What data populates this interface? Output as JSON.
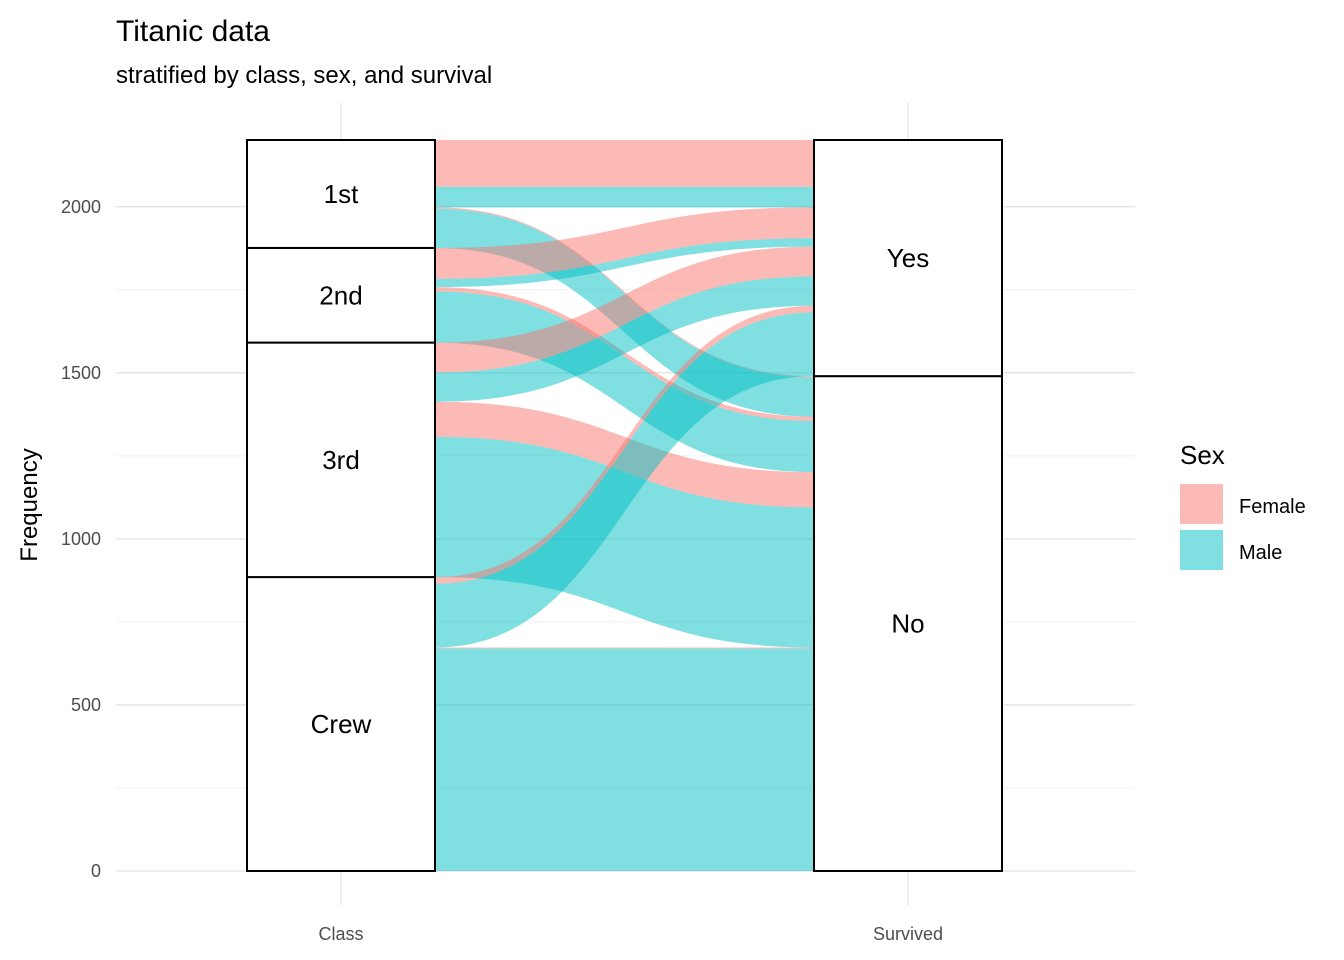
{
  "chart_data": {
    "type": "alluvial",
    "title": "Titanic data",
    "subtitle": "stratified by class, sex, and survival",
    "ylabel": "Frequency",
    "xlabel": "",
    "axes": [
      "Class",
      "Survived"
    ],
    "ylim": [
      0,
      2201
    ],
    "y_ticks": [
      0,
      500,
      1000,
      1500,
      2000
    ],
    "grid": true,
    "legend": {
      "title": "Sex",
      "position": "right",
      "entries": [
        "Female",
        "Male"
      ]
    },
    "colors": {
      "Female": "#F8766D",
      "Male": "#00BFC4"
    },
    "strata": {
      "Class": [
        "1st",
        "2nd",
        "3rd",
        "Crew"
      ],
      "Survived": [
        "Yes",
        "No"
      ]
    },
    "flows": [
      {
        "Class": "1st",
        "Sex": "Female",
        "Survived": "Yes",
        "value": 141
      },
      {
        "Class": "1st",
        "Sex": "Male",
        "Survived": "Yes",
        "value": 62
      },
      {
        "Class": "1st",
        "Sex": "Female",
        "Survived": "No",
        "value": 4
      },
      {
        "Class": "1st",
        "Sex": "Male",
        "Survived": "No",
        "value": 118
      },
      {
        "Class": "2nd",
        "Sex": "Female",
        "Survived": "Yes",
        "value": 93
      },
      {
        "Class": "2nd",
        "Sex": "Male",
        "Survived": "Yes",
        "value": 25
      },
      {
        "Class": "2nd",
        "Sex": "Female",
        "Survived": "No",
        "value": 13
      },
      {
        "Class": "2nd",
        "Sex": "Male",
        "Survived": "No",
        "value": 154
      },
      {
        "Class": "3rd",
        "Sex": "Female",
        "Survived": "Yes",
        "value": 90
      },
      {
        "Class": "3rd",
        "Sex": "Male",
        "Survived": "Yes",
        "value": 88
      },
      {
        "Class": "3rd",
        "Sex": "Female",
        "Survived": "No",
        "value": 106
      },
      {
        "Class": "3rd",
        "Sex": "Male",
        "Survived": "No",
        "value": 422
      },
      {
        "Class": "Crew",
        "Sex": "Female",
        "Survived": "Yes",
        "value": 20
      },
      {
        "Class": "Crew",
        "Sex": "Male",
        "Survived": "Yes",
        "value": 192
      },
      {
        "Class": "Crew",
        "Sex": "Female",
        "Survived": "No",
        "value": 3
      },
      {
        "Class": "Crew",
        "Sex": "Male",
        "Survived": "No",
        "value": 670
      }
    ]
  }
}
